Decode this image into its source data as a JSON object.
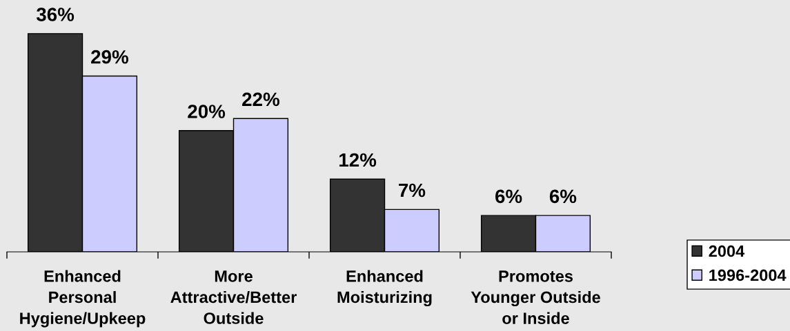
{
  "chart_data": {
    "type": "bar",
    "categories": [
      "Enhanced\nPersonal\nHygiene/Upkeep",
      "More\nAttractive/Better\nOutside",
      "Enhanced\nMoisturizing",
      "Promotes\nYounger Outside\nor Inside"
    ],
    "series": [
      {
        "name": "2004",
        "color": "#333333",
        "values": [
          36,
          20,
          12,
          6
        ],
        "value_labels": [
          "36%",
          "20%",
          "12%",
          "6%"
        ]
      },
      {
        "name": "1996-2004",
        "color": "#ccccff",
        "values": [
          29,
          22,
          7,
          6
        ],
        "value_labels": [
          "29%",
          "22%",
          "7%",
          "6%"
        ]
      }
    ],
    "tick_labels": "x",
    "legend": "right"
  }
}
